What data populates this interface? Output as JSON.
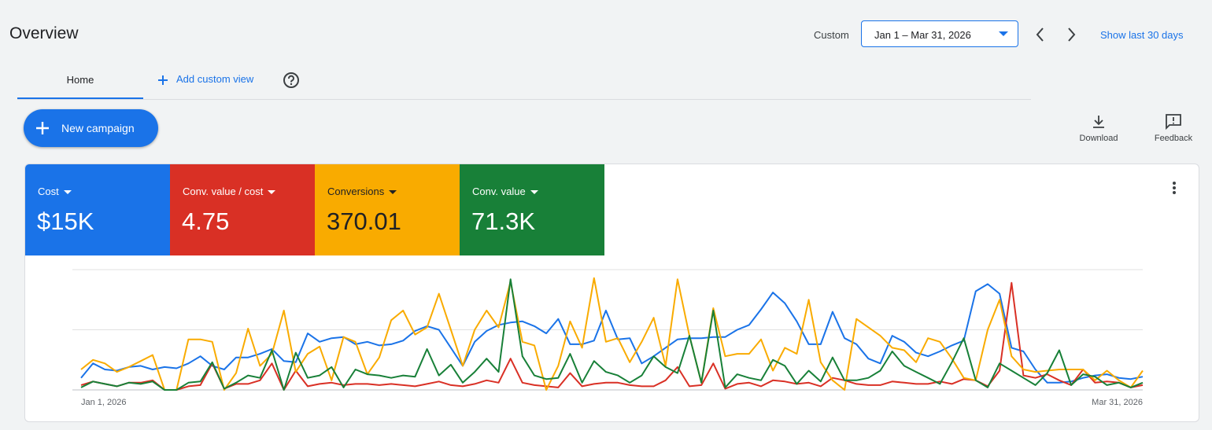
{
  "header": {
    "title": "Overview",
    "range_label": "Custom",
    "date_range": "Jan 1 – Mar 31, 2026",
    "show_last": "Show last 30 days"
  },
  "tabs": {
    "home": "Home",
    "add": "Add custom view"
  },
  "actions": {
    "new_campaign": "New campaign",
    "download": "Download",
    "feedback": "Feedback"
  },
  "metrics": [
    {
      "value": "$15K"
    },
    {
      "value": "4.75"
    },
    {
      "value": "370.01"
    },
    {
      "value": "71.3K"
    }
  ],
  "chart_data": {
    "type": "line",
    "categories": [
      "Jan 1, 2026",
      null,
      null,
      null,
      null,
      null,
      null,
      null,
      null,
      null,
      null,
      null,
      null,
      null,
      null,
      null,
      null,
      null,
      null,
      null,
      null,
      null,
      null,
      null,
      null,
      null,
      null,
      null,
      null,
      null,
      null,
      null,
      null,
      null,
      null,
      null,
      null,
      null,
      null,
      null,
      null,
      null,
      null,
      null,
      null,
      null,
      null,
      null,
      null,
      null,
      null,
      null,
      null,
      null,
      null,
      null,
      null,
      null,
      null,
      null,
      null,
      null,
      null,
      null,
      null,
      null,
      null,
      null,
      null,
      null,
      null,
      null,
      null,
      null,
      null,
      null,
      null,
      null,
      null,
      null,
      null,
      null,
      null,
      null,
      null,
      null,
      null,
      null,
      null,
      "Mar 31, 2026"
    ],
    "ylim": [
      0,
      100
    ],
    "grid_lines": [
      0,
      50,
      100
    ],
    "series": [
      {
        "name": "Cost",
        "color": "#1a73e8",
        "values": [
          10,
          22,
          17,
          16,
          19,
          20,
          17,
          19,
          18,
          22,
          28,
          20,
          17,
          27,
          27,
          30,
          34,
          24,
          23,
          47,
          40,
          43,
          44,
          38,
          40,
          37,
          38,
          41,
          49,
          53,
          50,
          35,
          20,
          40,
          49,
          54,
          56,
          57,
          53,
          47,
          59,
          38,
          38,
          41,
          66,
          42,
          43,
          22,
          28,
          35,
          42,
          43,
          43,
          44,
          44,
          50,
          54,
          67,
          81,
          72,
          57,
          38,
          38,
          65,
          43,
          38,
          26,
          22,
          45,
          40,
          31,
          28,
          32,
          37,
          41,
          82,
          88,
          80,
          35,
          32,
          17,
          6,
          6,
          7,
          10,
          12,
          13,
          10,
          9,
          11
        ]
      },
      {
        "name": "Conv. value / cost",
        "color": "#d93025",
        "values": [
          4,
          7,
          5,
          3,
          6,
          6,
          8,
          0,
          0,
          3,
          4,
          22,
          1,
          5,
          5,
          8,
          22,
          0,
          16,
          3,
          5,
          6,
          4,
          5,
          5,
          4,
          5,
          4,
          3,
          5,
          7,
          4,
          3,
          5,
          8,
          6,
          26,
          6,
          4,
          3,
          2,
          14,
          3,
          5,
          6,
          6,
          4,
          3,
          3,
          8,
          19,
          3,
          4,
          22,
          1,
          5,
          6,
          3,
          8,
          7,
          5,
          6,
          3,
          10,
          8,
          5,
          4,
          4,
          7,
          6,
          5,
          5,
          7,
          5,
          9,
          8,
          3,
          16,
          89,
          12,
          10,
          13,
          8,
          4,
          17,
          6,
          7,
          6,
          2,
          4
        ]
      },
      {
        "name": "Conversions",
        "color": "#f9ab00",
        "values": [
          17,
          25,
          22,
          15,
          19,
          24,
          29,
          0,
          0,
          42,
          42,
          40,
          0,
          14,
          51,
          20,
          30,
          66,
          15,
          30,
          36,
          8,
          44,
          40,
          13,
          27,
          58,
          66,
          46,
          52,
          80,
          50,
          20,
          50,
          66,
          52,
          90,
          40,
          37,
          0,
          20,
          57,
          35,
          93,
          40,
          43,
          23,
          40,
          60,
          20,
          92,
          45,
          6,
          68,
          28,
          30,
          30,
          42,
          16,
          35,
          30,
          75,
          23,
          8,
          0,
          59,
          52,
          45,
          35,
          33,
          23,
          43,
          40,
          26,
          10,
          8,
          50,
          75,
          28,
          17,
          15,
          16,
          17,
          17,
          17,
          8,
          16,
          8,
          2,
          16
        ]
      },
      {
        "name": "Conv. value",
        "color": "#188038",
        "values": [
          2,
          7,
          5,
          3,
          6,
          5,
          7,
          0,
          0,
          6,
          7,
          23,
          1,
          6,
          12,
          10,
          33,
          0,
          31,
          10,
          12,
          19,
          2,
          17,
          13,
          12,
          10,
          12,
          11,
          34,
          12,
          21,
          6,
          15,
          26,
          15,
          92,
          28,
          12,
          9,
          10,
          30,
          6,
          24,
          15,
          12,
          6,
          12,
          28,
          19,
          14,
          45,
          6,
          66,
          2,
          13,
          10,
          8,
          25,
          20,
          5,
          16,
          7,
          27,
          8,
          8,
          10,
          16,
          32,
          20,
          15,
          10,
          5,
          23,
          43,
          8,
          2,
          22,
          16,
          10,
          4,
          14,
          33,
          4,
          13,
          11,
          4,
          6,
          2,
          6
        ]
      }
    ]
  }
}
